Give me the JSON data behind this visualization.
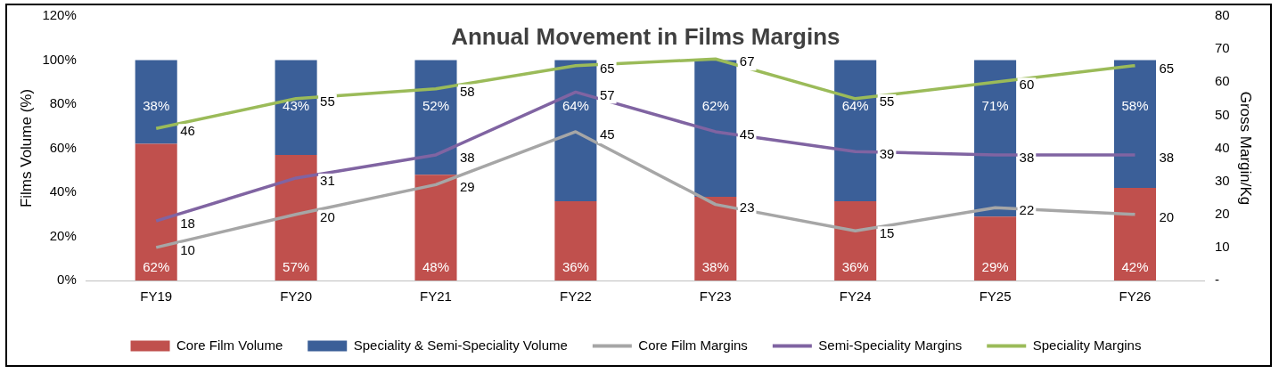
{
  "chart_data": {
    "type": "bar",
    "title": "Annual Movement in Films Margins",
    "ylabel": "Films Volume (%)",
    "y2label": "Gross Margin/Kg",
    "categories": [
      "FY19",
      "FY20",
      "FY21",
      "FY22",
      "FY23",
      "FY24",
      "FY25",
      "FY26"
    ],
    "stacked": true,
    "ylim": [
      0,
      120
    ],
    "yticks": [
      {
        "value": 0,
        "label": "0%"
      },
      {
        "value": 20,
        "label": "20%"
      },
      {
        "value": 40,
        "label": "40%"
      },
      {
        "value": 60,
        "label": "60%"
      },
      {
        "value": 80,
        "label": "80%"
      },
      {
        "value": 100,
        "label": "100%"
      },
      {
        "value": 120,
        "label": "120%"
      }
    ],
    "y2lim": [
      0,
      80
    ],
    "y2ticks": [
      {
        "value": 0,
        "label": "-"
      },
      10,
      20,
      30,
      40,
      50,
      60,
      70,
      80
    ],
    "series": [
      {
        "name": "Core Film Volume",
        "color": "#c0504d",
        "values": [
          62,
          57,
          48,
          36,
          38,
          36,
          29,
          42
        ],
        "value_labels": [
          "62%",
          "57%",
          "48%",
          "36%",
          "38%",
          "36%",
          "29%",
          "42%"
        ]
      },
      {
        "name": "Speciality & Semi-Speciality Volume",
        "color": "#3b5f98",
        "values": [
          38,
          43,
          52,
          64,
          62,
          64,
          71,
          58
        ],
        "value_labels": [
          "38%",
          "43%",
          "52%",
          "64%",
          "62%",
          "64%",
          "71%",
          "58%"
        ]
      },
      {
        "name": "Core Film Margins",
        "type": "line",
        "axis": "y2",
        "color": "#a6a6a6",
        "values": [
          10,
          20,
          29,
          45,
          23,
          15,
          22,
          20
        ],
        "value_labels": [
          "10",
          "20",
          "29",
          "45",
          "23",
          "15",
          "22",
          "20"
        ]
      },
      {
        "name": "Semi-Speciality Margins",
        "type": "line",
        "axis": "y2",
        "color": "#8064a2",
        "values": [
          18,
          31,
          38,
          57,
          45,
          39,
          38,
          38
        ],
        "value_labels": [
          "18",
          "31",
          "38",
          "57",
          "45",
          "39",
          "38",
          "38"
        ]
      },
      {
        "name": "Speciality Margins",
        "type": "line",
        "axis": "y2",
        "color": "#9bbb59",
        "values": [
          46,
          55,
          58,
          65,
          67,
          55,
          60,
          65
        ],
        "value_labels": [
          "46",
          "55",
          "58",
          "65",
          "67",
          "55",
          "60",
          "65"
        ]
      }
    ],
    "legend": "bottom",
    "grid": false,
    "marker": "none"
  }
}
